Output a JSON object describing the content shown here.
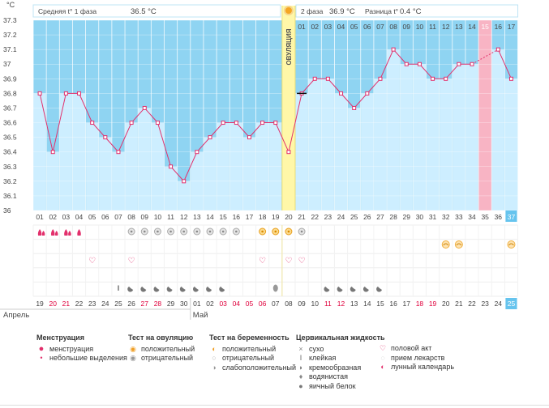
{
  "chart_data": {
    "type": "line",
    "ylabel": "°C",
    "ylim": [
      36,
      37.3
    ],
    "yticks": [
      "37.3",
      "37.2",
      "37.1",
      "37",
      "36.9",
      "36.8",
      "36.7",
      "36.6",
      "36.5",
      "36.4",
      "36.3",
      "36.2",
      "36.1",
      "36"
    ],
    "cycle_days": [
      "01",
      "02",
      "03",
      "04",
      "05",
      "06",
      "07",
      "08",
      "09",
      "10",
      "11",
      "12",
      "13",
      "14",
      "15",
      "16",
      "17",
      "18",
      "19",
      "20",
      "21",
      "22",
      "23",
      "24",
      "25",
      "26",
      "27",
      "28",
      "29",
      "30",
      "31",
      "32",
      "33",
      "34",
      "35",
      "36",
      "37"
    ],
    "phase2_days": [
      "01",
      "02",
      "03",
      "04",
      "05",
      "06",
      "07",
      "08",
      "09",
      "10",
      "11",
      "12",
      "13",
      "14",
      "15",
      "16",
      "17"
    ],
    "ovulation_label": "ОВУЛЯЦИЯ",
    "phase1_label": "Средняя t° 1 фаза",
    "phase1_value": "36.5 °C",
    "phase2_label": "2 фаза",
    "phase2_value": "36.9 °C",
    "diff_label": "Разница t°",
    "diff_value": "0.4 °C",
    "temperatures": [
      36.8,
      36.4,
      36.8,
      36.8,
      36.6,
      36.5,
      36.4,
      36.6,
      36.7,
      36.6,
      36.3,
      36.2,
      36.4,
      36.5,
      36.6,
      36.6,
      36.5,
      36.6,
      36.6,
      36.4,
      36.8,
      36.9,
      36.9,
      36.8,
      36.7,
      36.8,
      36.9,
      37.1,
      37.0,
      37.0,
      36.9,
      36.9,
      37.0,
      37.0,
      null,
      37.1,
      36.9
    ],
    "dashed_bridge": [
      34,
      36
    ],
    "ovulation_day": 20,
    "highlight_day": 35,
    "highlight_color": "#f8b4c4",
    "today_day": 37,
    "calendar_dates": [
      "19",
      "20",
      "21",
      "22",
      "23",
      "24",
      "25",
      "26",
      "27",
      "28",
      "29",
      "30",
      "01",
      "02",
      "03",
      "04",
      "05",
      "06",
      "07",
      "08",
      "09",
      "10",
      "11",
      "12",
      "13",
      "14",
      "15",
      "16",
      "17",
      "18",
      "19",
      "20",
      "21",
      "22",
      "23",
      "24",
      "25"
    ],
    "weekend_dates": [
      1,
      2,
      8,
      9,
      14,
      15,
      16,
      17,
      22,
      23,
      29,
      30
    ],
    "month_april": "Апрель",
    "month_may": "Май",
    "menstruation_days": [
      1,
      2,
      3,
      4
    ],
    "menstruation_heavy": [
      1,
      2,
      3
    ],
    "ovulation_test_negative": [
      8,
      9,
      10,
      11,
      12,
      13,
      14,
      15,
      16,
      21
    ],
    "ovulation_test_positive": [
      18,
      19,
      20
    ],
    "pregnancy_test_weak": [
      32,
      33,
      37
    ],
    "intercourse_days": [
      5,
      8,
      18,
      20,
      21
    ],
    "fluid_sticky": [
      7
    ],
    "fluid_creamy": [
      8,
      9,
      10,
      11,
      12,
      13,
      14,
      15,
      23,
      24,
      25,
      26,
      27
    ],
    "fluid_egg": [
      19
    ],
    "colors": {
      "phase_fill": "#8fd4f2",
      "bar": "#cdeeff",
      "bar_edge": "#7cc7ea",
      "line": "#e2306c",
      "ovulation_band": "#fff7a8",
      "red_text": "#e0003c",
      "today": "#66c4ee"
    }
  },
  "legend": {
    "menstruation": {
      "title": "Менструация",
      "items": [
        "менструация",
        "небольшие выделения"
      ]
    },
    "ovulation_test": {
      "title": "Тест на овуляцию",
      "items": [
        "положительный",
        "отрицательный"
      ]
    },
    "pregnancy_test": {
      "title": "Тест на беременность",
      "items": [
        "положительный",
        "отрицательный",
        "слабоположительный"
      ]
    },
    "cervical_fluid": {
      "title": "Цервикальная жидкость",
      "items": [
        "сухо",
        "клейкая",
        "кремообразная",
        "водянистая",
        "яичный белок"
      ]
    },
    "other": {
      "items": [
        "половой акт",
        "прием лекарств",
        "лунный календарь"
      ]
    }
  }
}
